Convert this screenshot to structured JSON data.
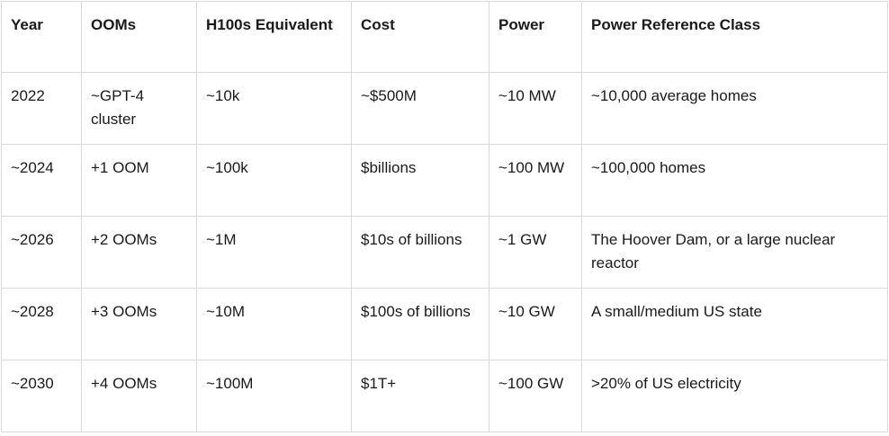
{
  "table": {
    "headers": [
      "Year",
      "OOMs",
      "H100s Equivalent",
      "Cost",
      "Power",
      "Power Reference Class"
    ],
    "rows": [
      [
        "2022",
        "~GPT-4 cluster",
        "~10k",
        "~$500M",
        "~10 MW",
        "~10,000 average homes"
      ],
      [
        "~2024",
        "+1 OOM",
        "~100k",
        "$billions",
        "~100 MW",
        "~100,000 homes"
      ],
      [
        "~2026",
        "+2 OOMs",
        "~1M",
        "$10s of billions",
        "~1 GW",
        "The Hoover Dam, or a large nuclear reactor"
      ],
      [
        "~2028",
        "+3 OOMs",
        "~10M",
        "$100s of billions",
        "~10 GW",
        "A small/medium US state"
      ],
      [
        "~2030",
        "+4 OOMs",
        "~100M",
        "$1T+",
        "~100 GW",
        ">20% of US electricity"
      ]
    ]
  }
}
